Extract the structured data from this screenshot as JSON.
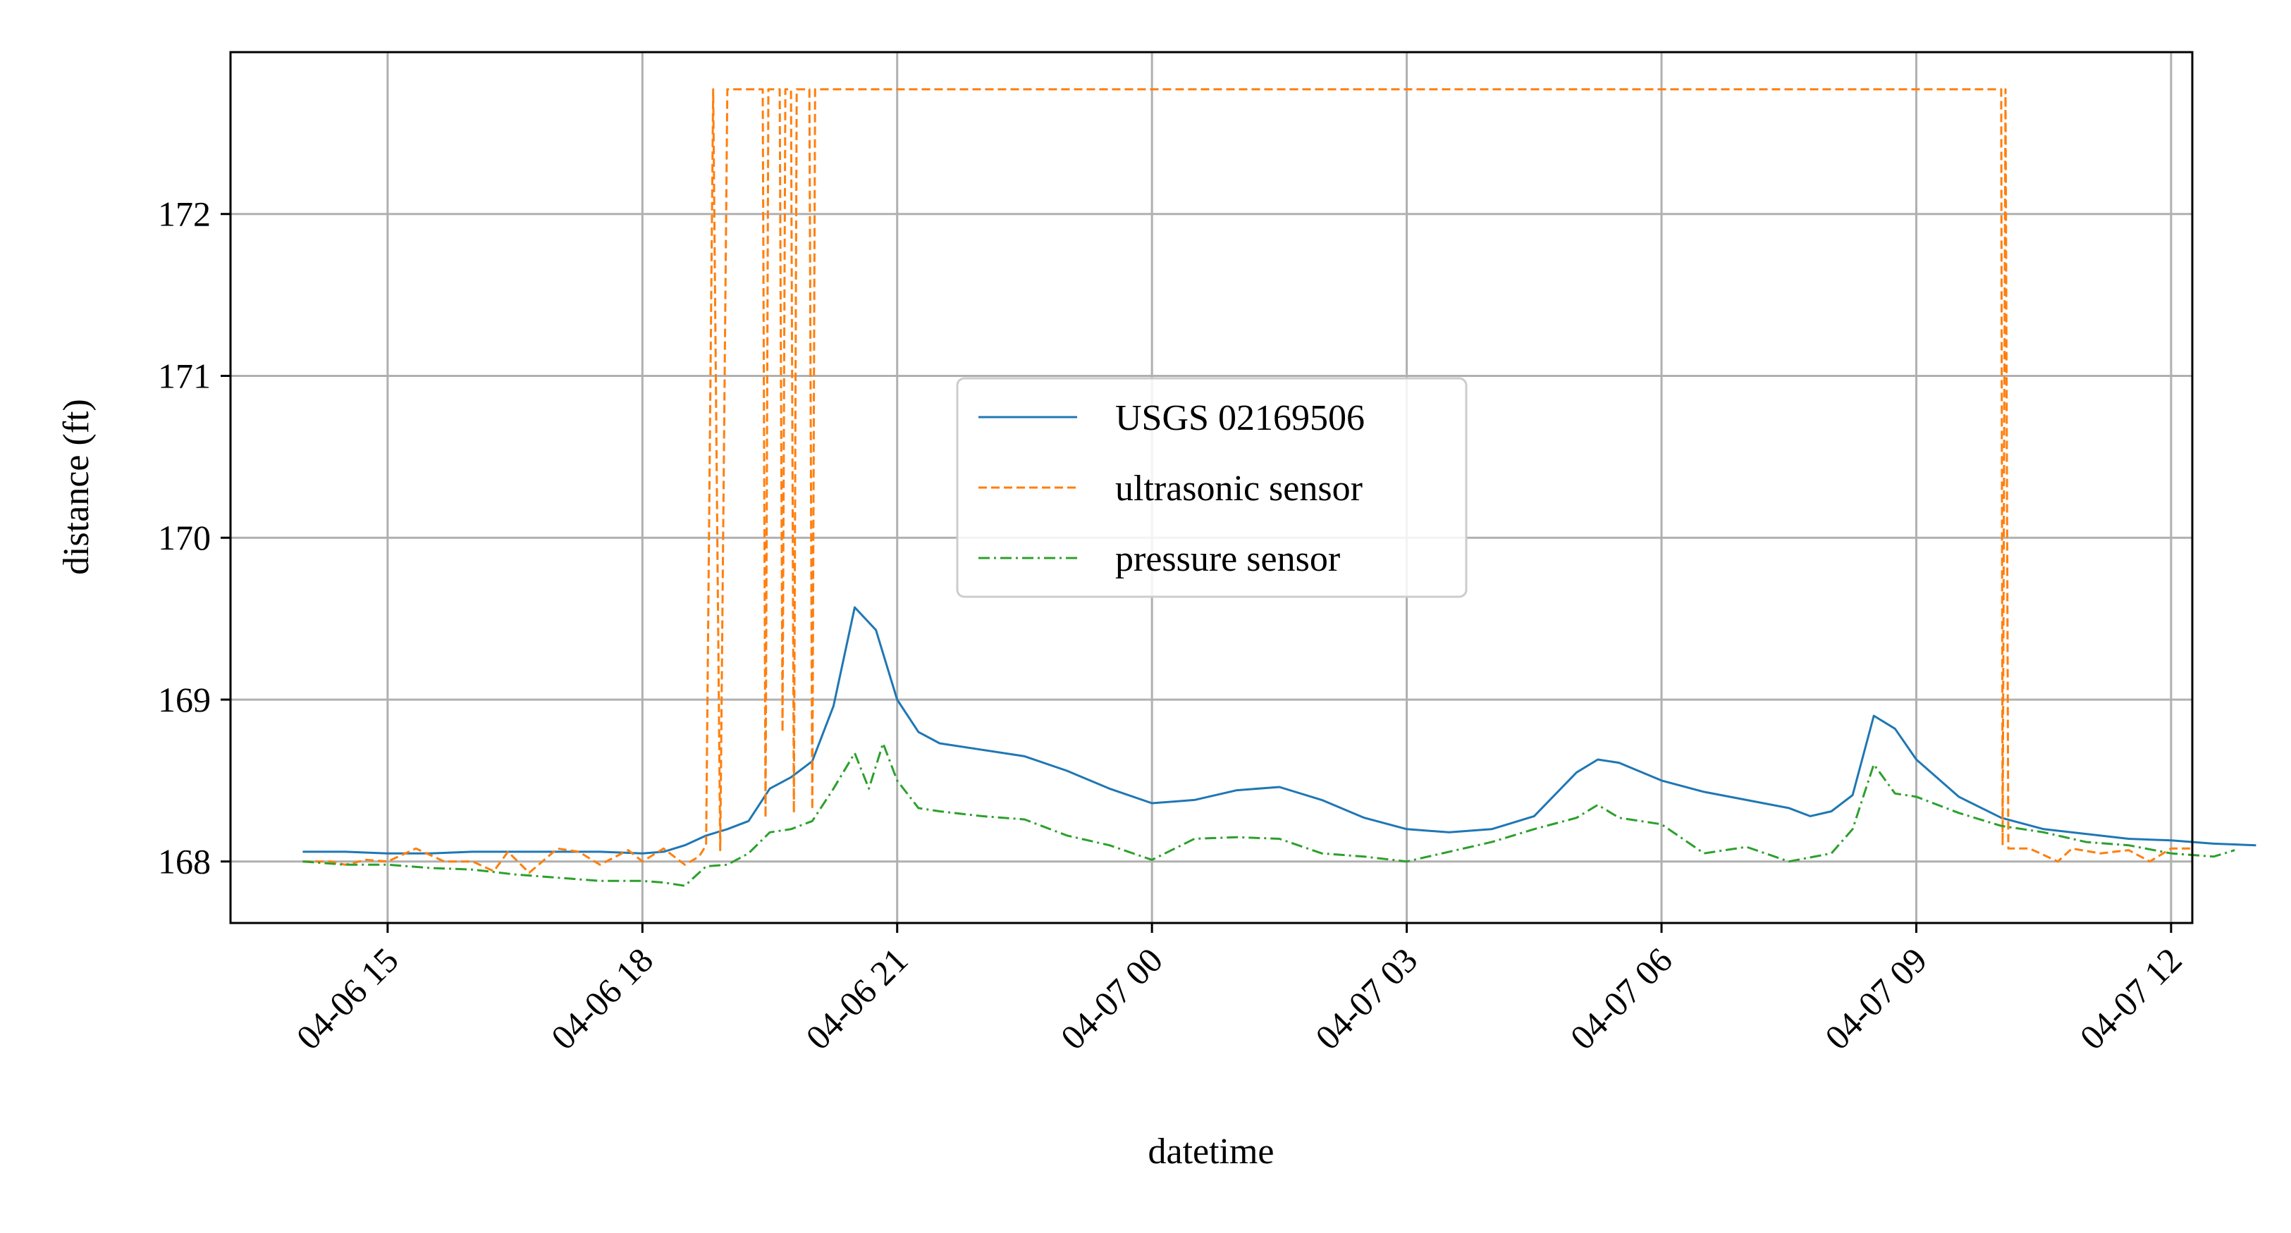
{
  "chart_data": {
    "type": "line",
    "xlabel": "datetime",
    "ylabel": "distance (ft)",
    "x_axis_type": "datetime",
    "xlim": [
      "2024-04-06T13:09",
      "2024-04-07T12:15"
    ],
    "ylim": [
      167.62,
      173.0
    ],
    "grid": true,
    "legend_position": "center",
    "x_ticks": [
      {
        "value": "2024-04-06T15:00",
        "label": "04-06 15"
      },
      {
        "value": "2024-04-06T18:00",
        "label": "04-06 18"
      },
      {
        "value": "2024-04-06T21:00",
        "label": "04-06 21"
      },
      {
        "value": "2024-04-07T00:00",
        "label": "04-07 00"
      },
      {
        "value": "2024-04-07T03:00",
        "label": "04-07 03"
      },
      {
        "value": "2024-04-07T06:00",
        "label": "04-07 06"
      },
      {
        "value": "2024-04-07T09:00",
        "label": "04-07 09"
      },
      {
        "value": "2024-04-07T12:00",
        "label": "04-07 12"
      }
    ],
    "y_ticks": [
      {
        "value": 168,
        "label": "168"
      },
      {
        "value": 169,
        "label": "169"
      },
      {
        "value": 170,
        "label": "170"
      },
      {
        "value": 171,
        "label": "171"
      },
      {
        "value": 172,
        "label": "172"
      }
    ],
    "series": [
      {
        "name": "USGS 02169506",
        "color": "#1f77b4",
        "dash": "solid",
        "points": [
          [
            "2024-04-06T14:00",
            168.06
          ],
          [
            "2024-04-06T14:30",
            168.06
          ],
          [
            "2024-04-06T15:00",
            168.05
          ],
          [
            "2024-04-06T15:30",
            168.05
          ],
          [
            "2024-04-06T16:00",
            168.06
          ],
          [
            "2024-04-06T16:30",
            168.06
          ],
          [
            "2024-04-06T17:00",
            168.06
          ],
          [
            "2024-04-06T17:30",
            168.06
          ],
          [
            "2024-04-06T18:00",
            168.05
          ],
          [
            "2024-04-06T18:15",
            168.06
          ],
          [
            "2024-04-06T18:30",
            168.1
          ],
          [
            "2024-04-06T18:45",
            168.16
          ],
          [
            "2024-04-06T19:00",
            168.2
          ],
          [
            "2024-04-06T19:15",
            168.25
          ],
          [
            "2024-04-06T19:30",
            168.45
          ],
          [
            "2024-04-06T19:45",
            168.52
          ],
          [
            "2024-04-06T20:00",
            168.62
          ],
          [
            "2024-04-06T20:15",
            168.96
          ],
          [
            "2024-04-06T20:30",
            169.57
          ],
          [
            "2024-04-06T20:45",
            169.43
          ],
          [
            "2024-04-06T21:00",
            169.0
          ],
          [
            "2024-04-06T21:15",
            168.8
          ],
          [
            "2024-04-06T21:30",
            168.73
          ],
          [
            "2024-04-06T22:00",
            168.69
          ],
          [
            "2024-04-06T22:30",
            168.65
          ],
          [
            "2024-04-06T23:00",
            168.56
          ],
          [
            "2024-04-06T23:30",
            168.45
          ],
          [
            "2024-04-07T00:00",
            168.36
          ],
          [
            "2024-04-07T00:30",
            168.38
          ],
          [
            "2024-04-07T01:00",
            168.44
          ],
          [
            "2024-04-07T01:30",
            168.46
          ],
          [
            "2024-04-07T02:00",
            168.38
          ],
          [
            "2024-04-07T02:30",
            168.27
          ],
          [
            "2024-04-07T03:00",
            168.2
          ],
          [
            "2024-04-07T03:30",
            168.18
          ],
          [
            "2024-04-07T04:00",
            168.2
          ],
          [
            "2024-04-07T04:30",
            168.28
          ],
          [
            "2024-04-07T05:00",
            168.55
          ],
          [
            "2024-04-07T05:15",
            168.63
          ],
          [
            "2024-04-07T05:30",
            168.61
          ],
          [
            "2024-04-07T06:00",
            168.5
          ],
          [
            "2024-04-07T06:30",
            168.43
          ],
          [
            "2024-04-07T07:00",
            168.38
          ],
          [
            "2024-04-07T07:30",
            168.33
          ],
          [
            "2024-04-07T07:45",
            168.28
          ],
          [
            "2024-04-07T08:00",
            168.31
          ],
          [
            "2024-04-07T08:15",
            168.41
          ],
          [
            "2024-04-07T08:30",
            168.9
          ],
          [
            "2024-04-07T08:45",
            168.82
          ],
          [
            "2024-04-07T09:00",
            168.63
          ],
          [
            "2024-04-07T09:30",
            168.4
          ],
          [
            "2024-04-07T10:00",
            168.27
          ],
          [
            "2024-04-07T10:30",
            168.2
          ],
          [
            "2024-04-07T11:00",
            168.17
          ],
          [
            "2024-04-07T11:30",
            168.14
          ],
          [
            "2024-04-07T12:00",
            168.13
          ],
          [
            "2024-04-07T12:30",
            168.11
          ],
          [
            "2024-04-07T13:00",
            168.1
          ]
        ]
      },
      {
        "name": "ultrasonic sensor",
        "color": "#ff7f0e",
        "dash": "dashed",
        "points": [
          [
            "2024-04-06T14:00",
            168.0
          ],
          [
            "2024-04-06T14:20",
            168.0
          ],
          [
            "2024-04-06T14:30",
            167.98
          ],
          [
            "2024-04-06T14:45",
            168.01
          ],
          [
            "2024-04-06T15:00",
            168.0
          ],
          [
            "2024-04-06T15:20",
            168.08
          ],
          [
            "2024-04-06T15:40",
            168.0
          ],
          [
            "2024-04-06T16:00",
            168.0
          ],
          [
            "2024-04-06T16:15",
            167.94
          ],
          [
            "2024-04-06T16:25",
            168.06
          ],
          [
            "2024-04-06T16:40",
            167.93
          ],
          [
            "2024-04-06T17:00",
            168.08
          ],
          [
            "2024-04-06T17:15",
            168.06
          ],
          [
            "2024-04-06T17:30",
            167.98
          ],
          [
            "2024-04-06T17:50",
            168.07
          ],
          [
            "2024-04-06T18:00",
            168.0
          ],
          [
            "2024-04-06T18:15",
            168.08
          ],
          [
            "2024-04-06T18:30",
            167.98
          ],
          [
            "2024-04-06T18:40",
            168.03
          ],
          [
            "2024-04-06T18:45",
            168.1
          ],
          [
            "2024-04-06T18:50",
            172.77
          ],
          [
            "2024-04-06T18:55",
            168.07
          ],
          [
            "2024-04-06T19:00",
            172.77
          ],
          [
            "2024-04-06T19:25",
            172.77
          ],
          [
            "2024-04-06T19:27",
            168.27
          ],
          [
            "2024-04-06T19:29",
            172.77
          ],
          [
            "2024-04-06T19:37",
            172.77
          ],
          [
            "2024-04-06T19:39",
            168.8
          ],
          [
            "2024-04-06T19:41",
            172.77
          ],
          [
            "2024-04-06T19:45",
            172.77
          ],
          [
            "2024-04-06T19:47",
            168.3
          ],
          [
            "2024-04-06T19:49",
            172.77
          ],
          [
            "2024-04-06T19:58",
            172.77
          ],
          [
            "2024-04-06T20:00",
            168.32
          ],
          [
            "2024-04-06T20:02",
            172.77
          ],
          [
            "2024-04-07T10:00",
            172.77
          ],
          [
            "2024-04-07T10:01",
            168.1
          ],
          [
            "2024-04-07T10:03",
            172.77
          ],
          [
            "2024-04-07T10:05",
            168.08
          ],
          [
            "2024-04-07T10:20",
            168.08
          ],
          [
            "2024-04-07T10:40",
            168.0
          ],
          [
            "2024-04-07T10:50",
            168.08
          ],
          [
            "2024-04-07T11:10",
            168.05
          ],
          [
            "2024-04-07T11:30",
            168.07
          ],
          [
            "2024-04-07T11:45",
            168.0
          ],
          [
            "2024-04-07T12:00",
            168.08
          ],
          [
            "2024-04-07T12:15",
            168.08
          ]
        ]
      },
      {
        "name": "pressure sensor",
        "color": "#2ca02c",
        "dash": "dashdot",
        "points": [
          [
            "2024-04-06T14:00",
            168.0
          ],
          [
            "2024-04-06T14:30",
            167.98
          ],
          [
            "2024-04-06T15:00",
            167.98
          ],
          [
            "2024-04-06T15:30",
            167.96
          ],
          [
            "2024-04-06T16:00",
            167.95
          ],
          [
            "2024-04-06T16:30",
            167.92
          ],
          [
            "2024-04-06T17:00",
            167.9
          ],
          [
            "2024-04-06T17:30",
            167.88
          ],
          [
            "2024-04-06T18:00",
            167.88
          ],
          [
            "2024-04-06T18:15",
            167.87
          ],
          [
            "2024-04-06T18:30",
            167.85
          ],
          [
            "2024-04-06T18:45",
            167.97
          ],
          [
            "2024-04-06T19:00",
            167.98
          ],
          [
            "2024-04-06T19:15",
            168.05
          ],
          [
            "2024-04-06T19:30",
            168.18
          ],
          [
            "2024-04-06T19:45",
            168.2
          ],
          [
            "2024-04-06T20:00",
            168.25
          ],
          [
            "2024-04-06T20:15",
            168.45
          ],
          [
            "2024-04-06T20:30",
            168.67
          ],
          [
            "2024-04-06T20:40",
            168.45
          ],
          [
            "2024-04-06T20:50",
            168.73
          ],
          [
            "2024-04-06T21:00",
            168.5
          ],
          [
            "2024-04-06T21:15",
            168.33
          ],
          [
            "2024-04-06T21:30",
            168.31
          ],
          [
            "2024-04-06T22:00",
            168.28
          ],
          [
            "2024-04-06T22:30",
            168.26
          ],
          [
            "2024-04-06T23:00",
            168.16
          ],
          [
            "2024-04-06T23:30",
            168.1
          ],
          [
            "2024-04-07T00:00",
            168.01
          ],
          [
            "2024-04-07T00:30",
            168.14
          ],
          [
            "2024-04-07T01:00",
            168.15
          ],
          [
            "2024-04-07T01:30",
            168.14
          ],
          [
            "2024-04-07T02:00",
            168.05
          ],
          [
            "2024-04-07T02:30",
            168.03
          ],
          [
            "2024-04-07T03:00",
            168.0
          ],
          [
            "2024-04-07T03:30",
            168.06
          ],
          [
            "2024-04-07T04:00",
            168.12
          ],
          [
            "2024-04-07T04:30",
            168.2
          ],
          [
            "2024-04-07T05:00",
            168.27
          ],
          [
            "2024-04-07T05:15",
            168.35
          ],
          [
            "2024-04-07T05:30",
            168.27
          ],
          [
            "2024-04-07T06:00",
            168.23
          ],
          [
            "2024-04-07T06:30",
            168.05
          ],
          [
            "2024-04-07T07:00",
            168.09
          ],
          [
            "2024-04-07T07:30",
            168.0
          ],
          [
            "2024-04-07T08:00",
            168.05
          ],
          [
            "2024-04-07T08:15",
            168.2
          ],
          [
            "2024-04-07T08:30",
            168.6
          ],
          [
            "2024-04-07T08:45",
            168.42
          ],
          [
            "2024-04-07T09:00",
            168.4
          ],
          [
            "2024-04-07T09:30",
            168.3
          ],
          [
            "2024-04-07T10:00",
            168.22
          ],
          [
            "2024-04-07T10:30",
            168.18
          ],
          [
            "2024-04-07T11:00",
            168.12
          ],
          [
            "2024-04-07T11:30",
            168.1
          ],
          [
            "2024-04-07T12:00",
            168.05
          ],
          [
            "2024-04-07T12:30",
            168.03
          ],
          [
            "2024-04-07T12:45",
            168.07
          ]
        ]
      }
    ]
  }
}
